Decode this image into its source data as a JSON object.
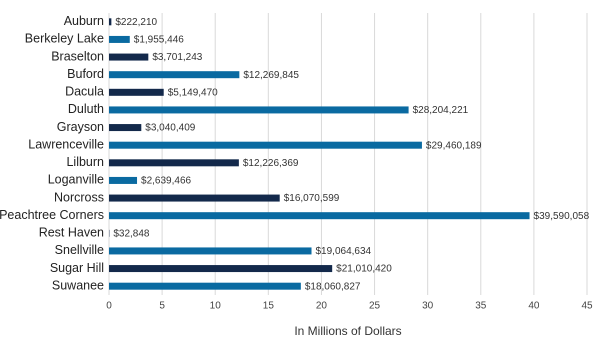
{
  "chart_data": {
    "type": "bar",
    "orientation": "horizontal",
    "x_label": "In Millions of Dollars",
    "categories": [
      "Auburn",
      "Berkeley Lake",
      "Braselton",
      "Buford",
      "Dacula",
      "Duluth",
      "Grayson",
      "Lawrenceville",
      "Lilburn",
      "Loganville",
      "Norcross",
      "Peachtree Corners",
      "Rest Haven",
      "Snellville",
      "Sugar Hill",
      "Suwanee"
    ],
    "values": [
      0.22221,
      1.955446,
      3.701243,
      12.269845,
      5.14947,
      28.204221,
      3.040409,
      29.460189,
      12.226369,
      2.639466,
      16.070599,
      39.590058,
      0.032848,
      19.064634,
      21.01042,
      18.060827
    ],
    "value_labels": [
      "$222,210",
      "$1,955,446",
      "$3,701,243",
      "$12,269,845",
      "$5,149,470",
      "$28,204,221",
      "$3,040,409",
      "$29,460,189",
      "$12,226,369",
      "$2,639,466",
      "$16,070,599",
      "$39,590,058",
      "$32,848",
      "$19,064,634",
      "$21,010,420",
      "$18,060,827"
    ],
    "colors": [
      "#13294b",
      "#0a6aa1",
      "#13294b",
      "#0a6aa1",
      "#13294b",
      "#0a6aa1",
      "#13294b",
      "#0a6aa1",
      "#13294b",
      "#0a6aa1",
      "#13294b",
      "#0a6aa1",
      "#13294b",
      "#0a6aa1",
      "#13294b",
      "#0a6aa1"
    ],
    "xlim": [
      0,
      45
    ],
    "xticks": [
      0,
      5,
      10,
      15,
      20,
      25,
      30,
      35,
      40,
      45
    ],
    "grid": true
  }
}
